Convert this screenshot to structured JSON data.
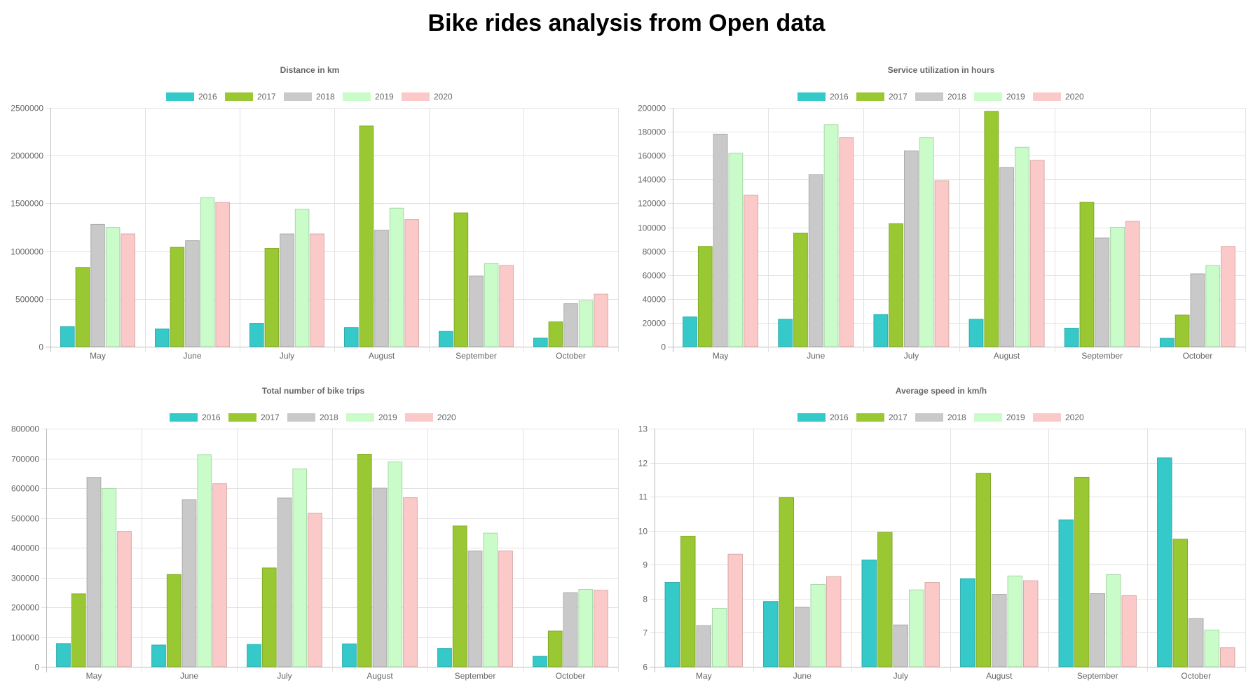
{
  "page": {
    "title": "Bike rides analysis from Open data"
  },
  "colors": {
    "2016": "#36c9c9",
    "2017": "#9ac832",
    "2018": "#c9c9c9",
    "2019": "#c9fcc9",
    "2020": "#fcc9c9"
  },
  "chart_data": [
    {
      "type": "bar",
      "title": "Distance in km",
      "categories": [
        "May",
        "June",
        "July",
        "August",
        "September",
        "October"
      ],
      "ylim": [
        0,
        2500000
      ],
      "yticks": [
        "0",
        "500000",
        "1000000",
        "1500000",
        "2000000",
        "2500000"
      ],
      "grid": true,
      "legend": "top-center",
      "series": [
        {
          "name": "2016",
          "values": [
            210000,
            185000,
            245000,
            200000,
            160000,
            90000
          ]
        },
        {
          "name": "2017",
          "values": [
            830000,
            1040000,
            1030000,
            2310000,
            1400000,
            260000
          ]
        },
        {
          "name": "2018",
          "values": [
            1280000,
            1110000,
            1180000,
            1220000,
            740000,
            450000
          ]
        },
        {
          "name": "2019",
          "values": [
            1250000,
            1560000,
            1440000,
            1450000,
            870000,
            480000
          ]
        },
        {
          "name": "2020",
          "values": [
            1180000,
            1510000,
            1180000,
            1330000,
            850000,
            550000
          ]
        }
      ]
    },
    {
      "type": "bar",
      "title": "Service utilization in hours",
      "categories": [
        "May",
        "June",
        "July",
        "August",
        "September",
        "October"
      ],
      "ylim": [
        0,
        200000
      ],
      "yticks": [
        "0",
        "20000",
        "40000",
        "60000",
        "80000",
        "100000",
        "120000",
        "140000",
        "160000",
        "180000",
        "200000"
      ],
      "grid": true,
      "legend": "top-center",
      "series": [
        {
          "name": "2016",
          "values": [
            25000,
            23000,
            27000,
            23000,
            15500,
            7000
          ]
        },
        {
          "name": "2017",
          "values": [
            84000,
            95000,
            103000,
            197000,
            121000,
            26500
          ]
        },
        {
          "name": "2018",
          "values": [
            178000,
            144000,
            164000,
            150000,
            91000,
            61000
          ]
        },
        {
          "name": "2019",
          "values": [
            162000,
            186000,
            175000,
            167000,
            100000,
            68000
          ]
        },
        {
          "name": "2020",
          "values": [
            127000,
            175000,
            139000,
            156000,
            105000,
            84000
          ]
        }
      ]
    },
    {
      "type": "bar",
      "title": "Total number of bike trips",
      "categories": [
        "May",
        "June",
        "July",
        "August",
        "September",
        "October"
      ],
      "ylim": [
        0,
        800000
      ],
      "yticks": [
        "0",
        "100000",
        "200000",
        "300000",
        "400000",
        "500000",
        "600000",
        "700000",
        "800000"
      ],
      "grid": true,
      "legend": "top-center",
      "series": [
        {
          "name": "2016",
          "values": [
            78000,
            73000,
            75000,
            77000,
            62000,
            35000
          ]
        },
        {
          "name": "2017",
          "values": [
            245000,
            310000,
            332000,
            714000,
            473000,
            120000
          ]
        },
        {
          "name": "2018",
          "values": [
            636000,
            561000,
            567000,
            600000,
            389000,
            249000
          ]
        },
        {
          "name": "2019",
          "values": [
            599000,
            713000,
            665000,
            688000,
            449000,
            260000
          ]
        },
        {
          "name": "2020",
          "values": [
            455000,
            615000,
            516000,
            568000,
            389000,
            257000
          ]
        }
      ]
    },
    {
      "type": "bar",
      "title": "Average speed in km/h",
      "categories": [
        "May",
        "June",
        "July",
        "August",
        "September",
        "October"
      ],
      "ylim": [
        6,
        13
      ],
      "yticks": [
        "6",
        "7",
        "8",
        "9",
        "10",
        "11",
        "12",
        "13"
      ],
      "grid": true,
      "legend": "top-center",
      "series": [
        {
          "name": "2016",
          "values": [
            8.48,
            7.92,
            9.14,
            8.59,
            10.32,
            12.14
          ]
        },
        {
          "name": "2017",
          "values": [
            9.84,
            10.97,
            9.95,
            11.69,
            11.57,
            9.75
          ]
        },
        {
          "name": "2018",
          "values": [
            7.21,
            7.75,
            7.23,
            8.13,
            8.15,
            7.42
          ]
        },
        {
          "name": "2019",
          "values": [
            7.72,
            8.42,
            8.26,
            8.67,
            8.71,
            7.08
          ]
        },
        {
          "name": "2020",
          "values": [
            9.31,
            8.65,
            8.48,
            8.53,
            8.09,
            6.56
          ]
        }
      ]
    }
  ]
}
